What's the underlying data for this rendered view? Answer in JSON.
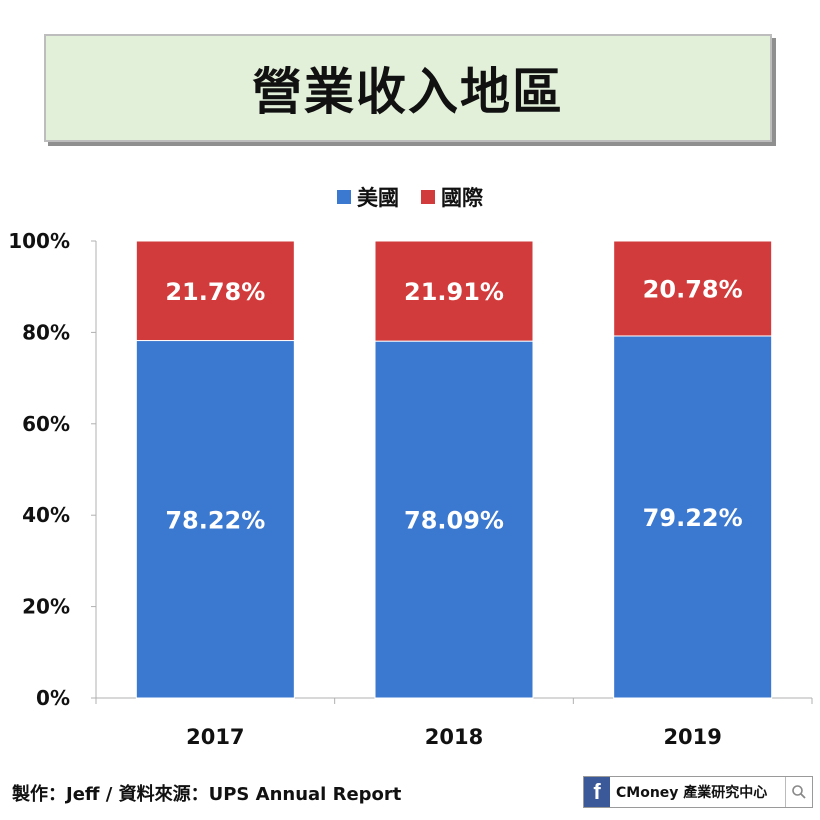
{
  "title": "營業收入地區",
  "legend": [
    {
      "name": "美國",
      "color": "#3b78cf"
    },
    {
      "name": "國際",
      "color": "#d23b3b"
    }
  ],
  "chart_data": {
    "type": "bar",
    "stacked": true,
    "categories": [
      "2017",
      "2018",
      "2019"
    ],
    "series": [
      {
        "name": "美國",
        "values": [
          78.22,
          78.09,
          79.22
        ],
        "labels": [
          "78.22%",
          "78.09%",
          "79.22%"
        ],
        "color": "#3b78cf"
      },
      {
        "name": "國際",
        "values": [
          21.78,
          21.91,
          20.78
        ],
        "labels": [
          "21.78%",
          "21.91%",
          "20.78%"
        ],
        "color": "#d23b3b"
      }
    ],
    "yticks": [
      "0%",
      "20%",
      "40%",
      "60%",
      "80%",
      "100%"
    ],
    "ylim": [
      0,
      100
    ],
    "grid": false,
    "legend_position": "top-center"
  },
  "footer": {
    "credit": "製作：Jeff / 資料來源：UPS Annual Report",
    "brand": "CMoney 產業研究中心",
    "fb_icon": "f"
  }
}
